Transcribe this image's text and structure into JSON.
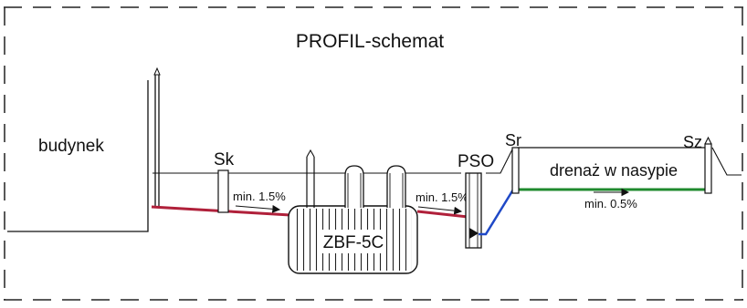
{
  "title": "PROFIL-schemat",
  "labels": {
    "building": "budynek",
    "sk": "Sk",
    "pso": "PSO",
    "sr": "Sr",
    "sz": "Sz",
    "tank": "ZBF-5C",
    "drainage": "drenaż w nasypie"
  },
  "slopes": {
    "slope_1": "min. 1.5%",
    "slope_2": "min. 1.5%",
    "slope_3": "min. 0.5%"
  },
  "colors": {
    "pipe_red": "#b0203a",
    "pipe_blue": "#1f49c7",
    "pipe_green": "#1f8a2e",
    "line": "#111111",
    "border_dash": "#222222"
  }
}
